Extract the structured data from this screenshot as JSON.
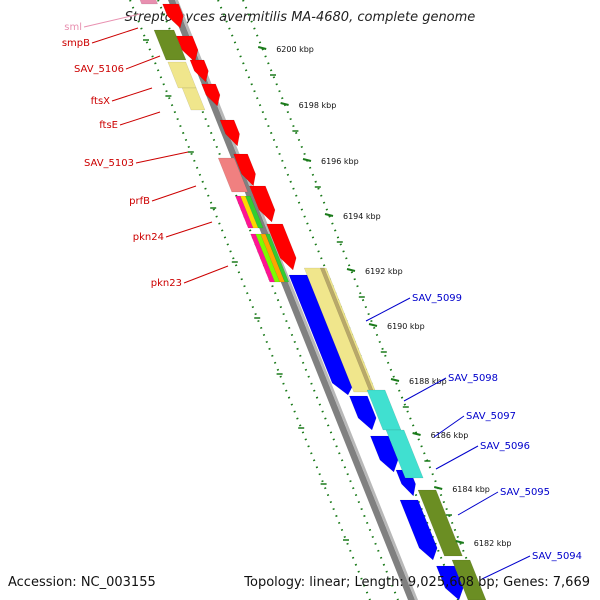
{
  "title": "Streptomyces avermitilis MA-4680, complete genome",
  "footer": {
    "accession": "Accession: NC_003155",
    "summary": "Topology: linear; Length: 9,025,608 bp; Genes: 7,669"
  },
  "colors": {
    "backbone": "#808080",
    "tick": "#1a7a1a",
    "left_label": "#cc0000",
    "right_label": "#0000cc",
    "pink_label": "#e890b0"
  },
  "ticks": [
    {
      "label": "6200 kbp"
    },
    {
      "label": "6198 kbp"
    },
    {
      "label": "6196 kbp"
    },
    {
      "label": "6194 kbp"
    },
    {
      "label": "6192 kbp"
    },
    {
      "label": "6190 kbp"
    },
    {
      "label": "6188 kbp"
    },
    {
      "label": "6186 kbp"
    },
    {
      "label": "6184 kbp"
    },
    {
      "label": "6182 kbp"
    }
  ],
  "left_labels": [
    {
      "text": "sml",
      "color": "pink"
    },
    {
      "text": "smpB",
      "color": "red"
    },
    {
      "text": "SAV_5106",
      "color": "red"
    },
    {
      "text": "ftsX",
      "color": "red"
    },
    {
      "text": "ftsE",
      "color": "red"
    },
    {
      "text": "SAV_5103",
      "color": "red"
    },
    {
      "text": "prfB",
      "color": "red"
    },
    {
      "text": "pkn24",
      "color": "red"
    },
    {
      "text": "pkn23",
      "color": "red"
    }
  ],
  "right_labels": [
    {
      "text": "SAV_5099"
    },
    {
      "text": "SAV_5098"
    },
    {
      "text": "SAV_5097"
    },
    {
      "text": "SAV_5096"
    },
    {
      "text": "SAV_5095"
    },
    {
      "text": "SAV_5094"
    }
  ]
}
